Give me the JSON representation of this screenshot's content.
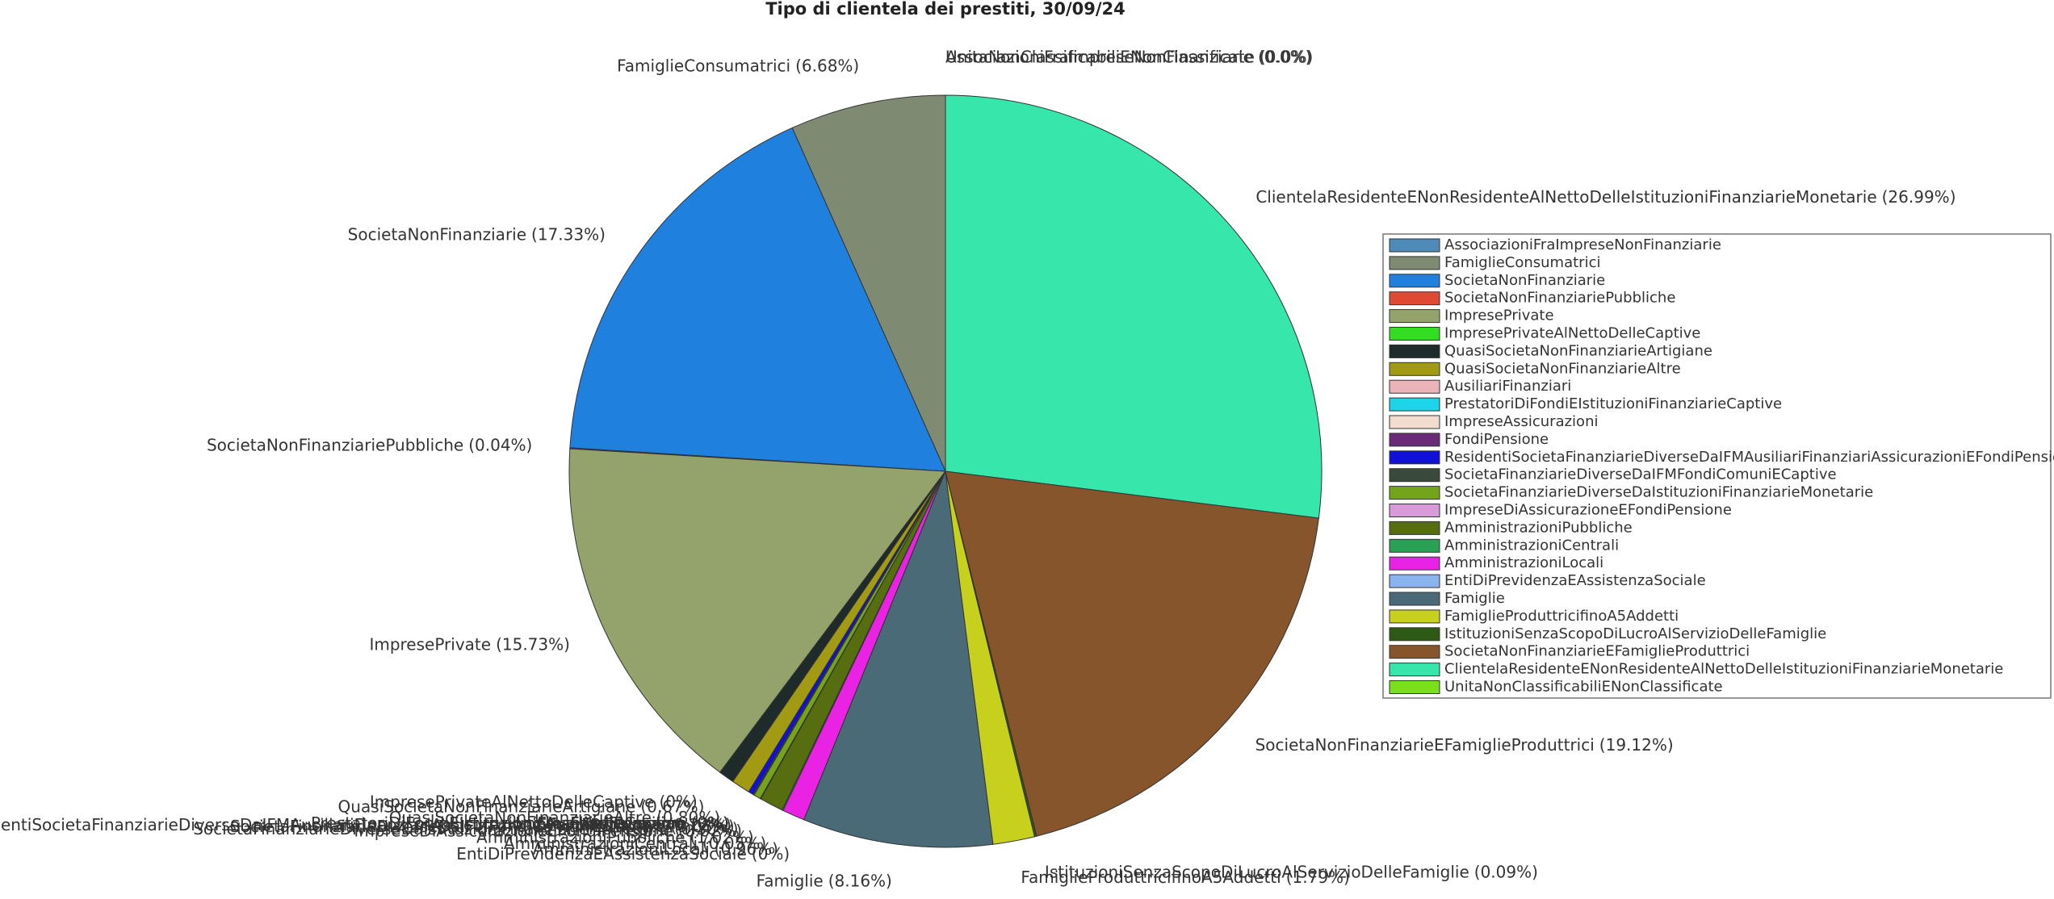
{
  "chart_data": {
    "type": "pie",
    "title": "Tipo di clientela dei prestiti, 30/09/24",
    "categories": [
      "AssociazioniFraImpreseNonFinanziarie",
      "FamiglieConsumatrici",
      "SocietaNonFinanziarie",
      "SocietaNonFinanziariePubbliche",
      "ImpresePrivate",
      "ImpresePrivateAlNettoDelleCaptive",
      "QuasiSocietaNonFinanziarieArtigiane",
      "QuasiSocietaNonFinanziarieAltre",
      "AusiliariFinanziari",
      "PrestatoriDiFondiEIstituzioniFinanziarieCaptive",
      "ImpreseAssicurazioni",
      "FondiPensione",
      "ResidentiSocietaFinanziarieDiverseDaIFMAusiliariFinanziariAssicurazioniEFondiPensione",
      "SocietaFinanziarieDiverseDaIFMFondiComuniECaptive",
      "SocietaFinanziarieDiverseDaIstituzioniFinanziarieMonetarie",
      "ImpreseDiAssicurazioneEFondiPensione",
      "AmministrazioniPubbliche",
      "AmministrazioniCentrali",
      "AmministrazioniLocali",
      "EntiDiPrevidenzaEAssistenzaSociale",
      "Famiglie",
      "FamiglieProduttricifinoA5Addetti",
      "IstituzioniSenzaScopoDiLucroAlServizioDelleFamiglie",
      "SocietaNonFinanziarieEFamiglieProduttrici",
      "ClientelaResidenteENonResidenteAlNettoDelleIstituzioniFinanziarieMonetarie",
      "UnitaNonClassificabiliENonClassificate"
    ],
    "values": [
      0,
      6.68,
      17.33,
      0.04,
      15.73,
      0,
      0.67,
      0.8,
      0,
      0,
      0,
      0,
      0.22,
      0.05,
      0.3,
      0.02,
      1.02,
      0.05,
      0.96,
      0,
      8.16,
      1.79,
      0.09,
      19.12,
      26.99,
      0
    ],
    "value_labels": [
      "(0.0%)",
      "(6.68%)",
      "(17.33%)",
      "(0.04%)",
      "(15.73%)",
      "(0%)",
      "(0.67%)",
      "(0.80%)",
      "(0%)",
      "(0%)",
      "(0%)",
      "(0%)",
      "(0.22%)",
      "(0.05%)",
      "(0.30%)",
      "(0.02%)",
      "(1.02%)",
      "(0.05%)",
      "(0.96%)",
      "(0%)",
      "(8.16%)",
      "(1.79%)",
      "(0.09%)",
      "(19.12%)",
      "(26.99%)",
      "(0.0%)"
    ],
    "colors": [
      "#4f8bb8",
      "#7f8a72",
      "#2080dd",
      "#e04a35",
      "#93a36b",
      "#33dd22",
      "#1f2a2a",
      "#a39a14",
      "#eab4b8",
      "#1ad6e8",
      "#f2dcd0",
      "#6a2a78",
      "#1010d8",
      "#3a4a3a",
      "#74a41a",
      "#d89ad8",
      "#566d10",
      "#2aa055",
      "#ea22e4",
      "#8ab4f0",
      "#4a6a78",
      "#c8d01e",
      "#2d5a14",
      "#86552c",
      "#36e6aa",
      "#7ae01c"
    ],
    "legend": "right"
  }
}
